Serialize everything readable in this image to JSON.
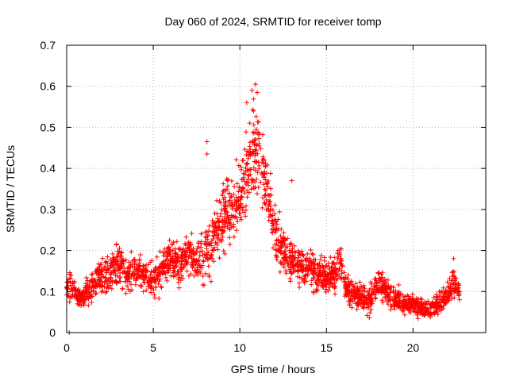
{
  "chart_data": {
    "type": "scatter",
    "title": "Day 060 of 2024, SRMTID for receiver tomp",
    "xlabel": "GPS time / hours",
    "ylabel": "SRMTID / TECUs",
    "xlim": [
      0,
      24.2
    ],
    "ylim": [
      0,
      0.7
    ],
    "xticks": [
      0,
      5,
      10,
      15,
      20
    ],
    "xtick_labels": [
      "0",
      "5",
      "10",
      "15",
      "20"
    ],
    "yticks": [
      0,
      0.1,
      0.2,
      0.3,
      0.4,
      0.5,
      0.6,
      0.7
    ],
    "ytick_labels": [
      "0",
      "0.1",
      "0.2",
      "0.3",
      "0.4",
      "0.5",
      "0.6",
      "0.7"
    ],
    "grid": true,
    "marker": "+",
    "series": [
      {
        "name": "SRMTID",
        "color": "#ff0000",
        "profile": {
          "x": [
            0,
            0.2,
            0.5,
            0.8,
            1.2,
            1.6,
            2.0,
            2.5,
            3.0,
            3.5,
            4.0,
            4.5,
            5.0,
            5.5,
            6.0,
            6.5,
            7.0,
            7.5,
            8.0,
            8.5,
            9.0,
            9.5,
            10.0,
            10.3,
            10.6,
            11.0,
            11.3,
            11.6,
            12.0,
            12.5,
            13.0,
            13.5,
            14.0,
            14.5,
            15.0,
            15.5,
            15.8,
            16.2,
            16.8,
            17.5,
            18.0,
            18.5,
            19.0,
            19.5,
            20.0,
            20.5,
            21.0,
            21.5,
            22.0,
            22.3,
            22.7
          ],
          "y": [
            0.1,
            0.12,
            0.09,
            0.08,
            0.1,
            0.12,
            0.14,
            0.15,
            0.17,
            0.14,
            0.15,
            0.14,
            0.12,
            0.15,
            0.18,
            0.17,
            0.19,
            0.17,
            0.2,
            0.23,
            0.28,
            0.3,
            0.32,
            0.38,
            0.42,
            0.45,
            0.4,
            0.34,
            0.24,
            0.2,
            0.17,
            0.16,
            0.16,
            0.14,
            0.13,
            0.15,
            0.18,
            0.1,
            0.09,
            0.08,
            0.12,
            0.1,
            0.08,
            0.07,
            0.07,
            0.06,
            0.06,
            0.07,
            0.09,
            0.13,
            0.09
          ],
          "spread": [
            0.03,
            0.05,
            0.03,
            0.03,
            0.04,
            0.04,
            0.05,
            0.05,
            0.07,
            0.05,
            0.06,
            0.05,
            0.06,
            0.06,
            0.06,
            0.06,
            0.06,
            0.06,
            0.1,
            0.09,
            0.1,
            0.1,
            0.1,
            0.13,
            0.14,
            0.15,
            0.12,
            0.1,
            0.08,
            0.06,
            0.06,
            0.06,
            0.05,
            0.05,
            0.05,
            0.06,
            0.07,
            0.04,
            0.04,
            0.04,
            0.05,
            0.04,
            0.04,
            0.03,
            0.03,
            0.03,
            0.03,
            0.03,
            0.04,
            0.05,
            0.03
          ]
        },
        "n_points": 2300,
        "outliers": [
          {
            "x": 0.15,
            "y": 0.0
          },
          {
            "x": 8.1,
            "y": 0.465
          },
          {
            "x": 8.1,
            "y": 0.435
          },
          {
            "x": 10.9,
            "y": 0.605
          },
          {
            "x": 10.7,
            "y": 0.59
          },
          {
            "x": 11.0,
            "y": 0.585
          },
          {
            "x": 10.4,
            "y": 0.56
          },
          {
            "x": 13.0,
            "y": 0.37
          }
        ]
      }
    ]
  }
}
